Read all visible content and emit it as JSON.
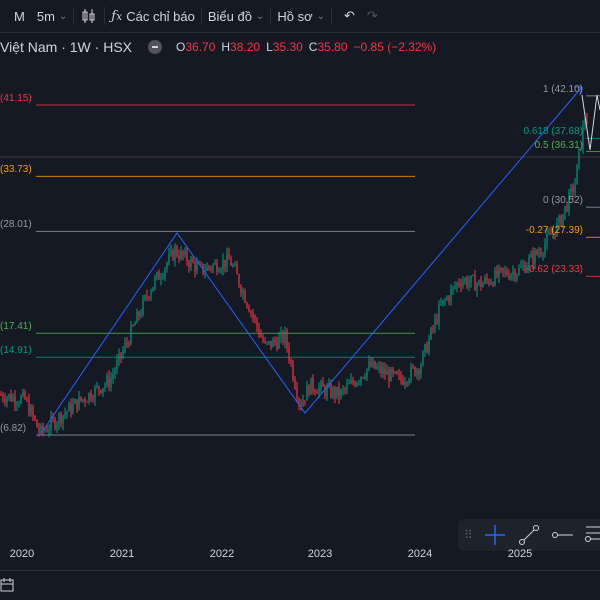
{
  "toolbar": {
    "interval_m": "M",
    "interval_5m": "5m",
    "indicators": "Các chỉ báo",
    "chart": "Biểu đồ",
    "profile": "Hồ sơ"
  },
  "legend": {
    "symbol": "Việt Nam · 1W · HSX",
    "o_label": "O",
    "open": "36.70",
    "h_label": "H",
    "high": "38.20",
    "l_label": "L",
    "low": "35.30",
    "c_label": "C",
    "close": "35.80",
    "change": "−0.85 (−2.32%)"
  },
  "left_levels": [
    {
      "label": "(41.15)",
      "price": 41.15,
      "color": "#f23645"
    },
    {
      "label": "(33.73)",
      "price": 33.73,
      "color": "#ff9800"
    },
    {
      "label": "(28.01)",
      "price": 28.01,
      "color": "#9598a1"
    },
    {
      "label": "(17.41)",
      "price": 17.41,
      "color": "#4caf50"
    },
    {
      "label": "(14.91)",
      "price": 14.91,
      "color": "#089981"
    },
    {
      "label": "(6.82)",
      "price": 6.82,
      "color": "#9598a1"
    }
  ],
  "right_levels": [
    {
      "label": "1 (42.10)",
      "price": 42.1,
      "color": "#9598a1"
    },
    {
      "label": "0.618 (37.68)",
      "price": 37.68,
      "color": "#089981"
    },
    {
      "label": "0.5 (36.31)",
      "price": 36.31,
      "color": "#4caf50"
    },
    {
      "label": "0 (30.52)",
      "price": 30.52,
      "color": "#9598a1"
    },
    {
      "label": "-0.27 (27.39)",
      "price": 27.39,
      "color": "#ff9800"
    },
    {
      "label": "-0.62 (23.33)",
      "price": 23.33,
      "color": "#f23645"
    }
  ],
  "xaxis": [
    "2020",
    "2021",
    "2022",
    "2023",
    "2024",
    "2025"
  ],
  "colors": {
    "up": "#089981",
    "down": "#f23645",
    "trend": "#2962ff"
  }
}
